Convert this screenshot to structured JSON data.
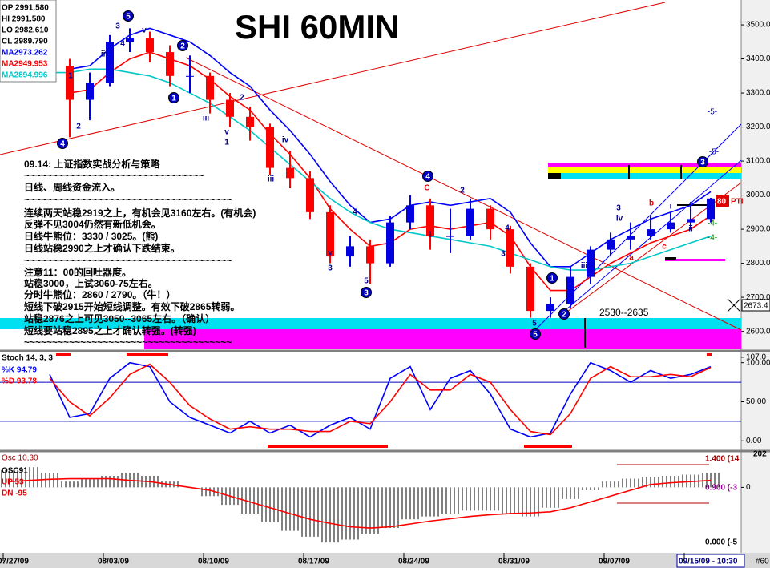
{
  "chart_data": [
    {
      "type": "candlestick",
      "title": "SHI 60MIN",
      "categories": [
        "07/27/09",
        null,
        null,
        null,
        null,
        "08/03/09",
        null,
        null,
        null,
        null,
        "08/10/09",
        null,
        null,
        null,
        null,
        "08/17/09",
        null,
        null,
        null,
        null,
        "08/24/09",
        null,
        null,
        null,
        null,
        "08/31/09",
        null,
        null,
        null,
        null,
        "09/07/09",
        null,
        null,
        null,
        "09/15/09 - 10:30",
        null
      ],
      "open": [
        null,
        null,
        null,
        3380,
        3280,
        3330,
        3450,
        3460,
        3420,
        3350,
        3350,
        3280,
        3230,
        3200,
        3080,
        3050,
        2950,
        2820,
        2850,
        2800,
        2920,
        2970,
        2880,
        2880,
        2960,
        2900,
        2790,
        2660,
        2680,
        2760,
        2840,
        2870,
        2880,
        2900,
        2920,
        2930
      ],
      "high": [
        null,
        null,
        null,
        3400,
        3360,
        3470,
        3490,
        3480,
        3440,
        3410,
        3360,
        3300,
        3260,
        3210,
        3130,
        3070,
        2970,
        2880,
        2870,
        2940,
        3000,
        2990,
        2960,
        2990,
        2970,
        2910,
        2800,
        2700,
        2790,
        2850,
        2890,
        2920,
        2940,
        2950,
        2980,
        2992
      ],
      "low": [
        null,
        null,
        null,
        3170,
        3220,
        3320,
        3420,
        3390,
        3320,
        3300,
        3240,
        3200,
        3160,
        3060,
        3020,
        2930,
        2800,
        2790,
        2740,
        2790,
        2900,
        2840,
        2830,
        2870,
        2870,
        2770,
        2640,
        2640,
        2670,
        2740,
        2820,
        2840,
        2870,
        2890,
        2900,
        2920
      ],
      "close": [
        null,
        null,
        null,
        3280,
        3330,
        3450,
        3460,
        3420,
        3350,
        3350,
        3280,
        3230,
        3200,
        3080,
        3050,
        2950,
        2820,
        2850,
        2800,
        2920,
        2970,
        2880,
        2880,
        2960,
        2900,
        2790,
        2660,
        2680,
        2760,
        2840,
        2870,
        2880,
        2900,
        2920,
        2930,
        2990
      ],
      "up_color": "#0000e0",
      "down_color": "#ff0000",
      "series": [
        {
          "name": "MA2973.262",
          "color": "#0000ff",
          "values": [
            null,
            null,
            null,
            3370,
            3380,
            3430,
            3470,
            3490,
            3470,
            3450,
            3410,
            3360,
            3320,
            3250,
            3190,
            3120,
            3040,
            2970,
            2920,
            2930,
            2970,
            2980,
            2970,
            2980,
            2990,
            2950,
            2860,
            2790,
            2790,
            2830,
            2870,
            2900,
            2930,
            2950,
            2970,
            3010
          ]
        },
        {
          "name": "MA2949.953",
          "color": "#ff0000",
          "values": [
            null,
            null,
            null,
            3300,
            3310,
            3360,
            3400,
            3420,
            3400,
            3380,
            3340,
            3290,
            3250,
            3180,
            3120,
            3050,
            2960,
            2900,
            2850,
            2860,
            2900,
            2910,
            2900,
            2910,
            2920,
            2880,
            2790,
            2720,
            2720,
            2760,
            2800,
            2830,
            2860,
            2880,
            2900,
            2940
          ]
        },
        {
          "name": "MA2894.996",
          "color": "#00c8c8",
          "values": [
            3380,
            3370,
            3360,
            3360,
            3370,
            3370,
            3360,
            3350,
            3330,
            3300,
            3270,
            3230,
            3190,
            3140,
            3090,
            3040,
            2990,
            2950,
            2920,
            2900,
            2890,
            2880,
            2870,
            2860,
            2850,
            2830,
            2810,
            2790,
            2780,
            2780,
            2790,
            2800,
            2820,
            2840,
            2860,
            2880
          ]
        }
      ],
      "ylim": [
        2545,
        3566
      ],
      "yticks": [
        {
          "value": 2600,
          "label": "2600.0"
        },
        {
          "value": 2700,
          "label": "2700.0"
        },
        {
          "value": 2800,
          "label": "2800.0"
        },
        {
          "value": 2900,
          "label": "2900.0"
        },
        {
          "value": 3000,
          "label": "3000.0"
        },
        {
          "value": 3100,
          "label": "3100.0"
        },
        {
          "value": 3200,
          "label": "3200.0"
        },
        {
          "value": 3300,
          "label": "3300.0"
        },
        {
          "value": 3400,
          "label": "3400.0"
        },
        {
          "value": 3500,
          "label": "3500.0"
        }
      ],
      "info": [
        "OP 2991.580",
        "HI 2991.580",
        "LO 2982.610",
        "CL 2989.790"
      ],
      "notes": [
        "09.14: 上证指数实战分析与策略",
        "~~~~~~~~~~~~~~~~~~~~~~~~~~~~~~~~",
        "日线、周线资金流入。",
        "~~~~~~~~~~~~~~~~~~~~~~~~~~~~~~~~~~~~~",
        "连续两天站稳2919之上，有机会见3160左右。(有机会)",
        "反弹不见3004仍然有新低机会。",
        "日线牛熊位：3330 / 3025。(熊)",
        "日线站稳2990之上才确认下跌结束。",
        "~~~~~~~~~~~~~~~~~~~~~~~~~~~~~~~~~~~~~",
        "注意11：00的回吐器度。",
        "站稳3000，上试3060-75左右。",
        "分时牛熊位：2860 / 2790。（牛！）",
        "短线下破2915开始短线调整。有效下破2865转弱。",
        "站稳2876之上可见3050--3065左右。（确认）",
        "短线要站稳2895之上才确认转强。(转强)",
        "~~~~~~~~~~~~~~~~~~~~~~~~~~~~~~~~~~~~~"
      ],
      "circled_labels": [
        "5",
        "2",
        "1",
        "4",
        "4",
        "3",
        "1",
        "2",
        "5",
        "3"
      ],
      "wave_labels": [
        "3",
        "4",
        "1",
        "2",
        "iii",
        "v",
        "iii",
        "v",
        "1",
        "2",
        "iv",
        "iii",
        "v",
        "3",
        "4",
        "5",
        "2",
        "1",
        "3",
        "4",
        "iii",
        "3",
        "iv",
        "i",
        "ii",
        "5"
      ],
      "red_labels": [
        "C",
        "b",
        "a",
        "c"
      ],
      "side_labels": [
        "-5-",
        "-5-",
        "-4-",
        "-4-"
      ],
      "range_label": "2530--2635",
      "cursor_label": "2673.4",
      "pti_value": "80",
      "pti_label": "PTI",
      "corner_label": "#60"
    },
    {
      "type": "line",
      "title": "Stoch 14, 3, 3",
      "series": [
        {
          "name": "%K  94.79",
          "color": "#0000ff",
          "values": [
            null,
            null,
            85,
            30,
            35,
            80,
            100,
            95,
            50,
            30,
            20,
            10,
            25,
            10,
            20,
            5,
            20,
            30,
            15,
            80,
            95,
            40,
            80,
            90,
            60,
            15,
            5,
            10,
            60,
            100,
            90,
            75,
            90,
            80,
            85,
            95
          ]
        },
        {
          "name": "%D  93.78",
          "color": "#ff0000",
          "values": [
            null,
            null,
            80,
            50,
            32,
            55,
            85,
            98,
            75,
            45,
            28,
            15,
            18,
            15,
            15,
            12,
            12,
            25,
            22,
            50,
            85,
            65,
            65,
            85,
            75,
            40,
            12,
            8,
            35,
            80,
            95,
            82,
            82,
            85,
            82,
            94
          ]
        }
      ],
      "levels": [
        75,
        25
      ],
      "ylim": [
        -12,
        113
      ],
      "yticks": [
        {
          "value": 0,
          "label": "0.00"
        },
        {
          "value": 50,
          "label": "50.00"
        },
        {
          "value": 100,
          "label": "100.00"
        },
        {
          "value": 107,
          "label": "107.0"
        }
      ]
    },
    {
      "type": "bar",
      "title": "Osc 10,30",
      "values": [
        30,
        35,
        25,
        10,
        15,
        20,
        25,
        20,
        10,
        0,
        -15,
        -30,
        -45,
        -60,
        -75,
        -85,
        -95,
        -90,
        -80,
        -70,
        -55,
        -50,
        -45,
        -40,
        -40,
        -45,
        -50,
        -35,
        -20,
        -5,
        10,
        15,
        18,
        20,
        22,
        25
      ],
      "color": "#000000",
      "series": [
        {
          "color": "#ff0000",
          "values": [
            10,
            12,
            14,
            15,
            15,
            15,
            12,
            10,
            5,
            0,
            -5,
            -15,
            -25,
            -35,
            -45,
            -55,
            -62,
            -68,
            -70,
            -68,
            -63,
            -58,
            -54,
            -50,
            -47,
            -45,
            -44,
            -42,
            -35,
            -25,
            -15,
            -5,
            5,
            8,
            10,
            12
          ]
        }
      ],
      "legend": [
        "OSC91",
        "UP  53",
        "DN  -95"
      ],
      "side_labels": [
        "1.400 (14",
        "0.900 (-3",
        "0.000 (-5",
        "202"
      ],
      "ylim": [
        -110,
        60
      ],
      "yticks": [
        0
      ]
    }
  ]
}
